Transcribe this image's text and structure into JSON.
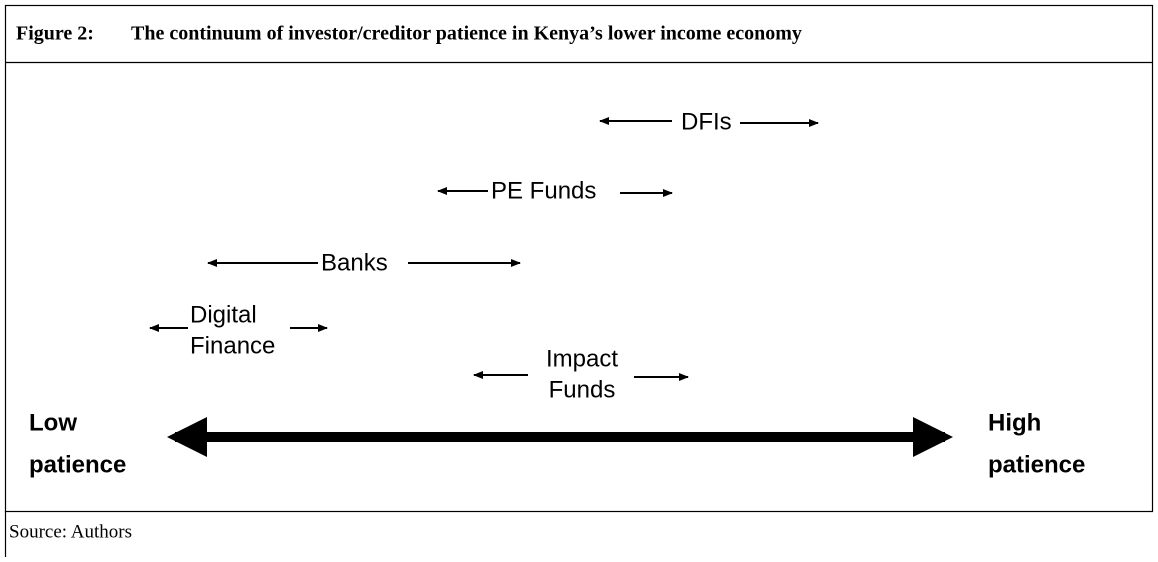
{
  "header": {
    "figure_label": "Figure 2:",
    "title": "The continuum of investor/creditor patience in Kenya’s lower income economy"
  },
  "nodes": [
    {
      "label": [
        "DFIs"
      ]
    },
    {
      "label": [
        "PE Funds"
      ]
    },
    {
      "label": [
        "Banks"
      ]
    },
    {
      "label": [
        "Digital",
        "Finance"
      ]
    },
    {
      "label": [
        "Impact",
        "Funds"
      ]
    }
  ],
  "axis": {
    "low": [
      "Low",
      "patience"
    ],
    "high": [
      "High",
      "patience"
    ]
  },
  "source": "Source: Authors"
}
